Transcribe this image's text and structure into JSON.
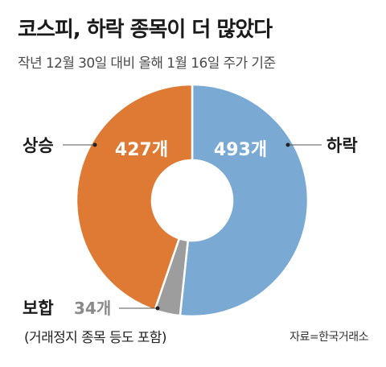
{
  "title": "코스피, 하락 종목이 더 많았다",
  "subtitle": "작년 12월 30일 대비 올해 1월 16일 주가 기준",
  "source": "자료=한국거래소",
  "note": "(거래정지 종목 등도 포함)",
  "chart_data": {
    "type": "pie",
    "donut": true,
    "title": "코스피, 하락 종목이 더 많았다",
    "subtitle": "작년 12월 30일 대비 올해 1월 16일 주가 기준",
    "slices": [
      {
        "name": "하락",
        "value": 493,
        "value_label": "493개",
        "color": "#7aaad4"
      },
      {
        "name": "보합",
        "value": 34,
        "value_label": "34개",
        "color": "#9d9d9d"
      },
      {
        "name": "상승",
        "value": 427,
        "value_label": "427개",
        "color": "#de7a33"
      }
    ]
  }
}
